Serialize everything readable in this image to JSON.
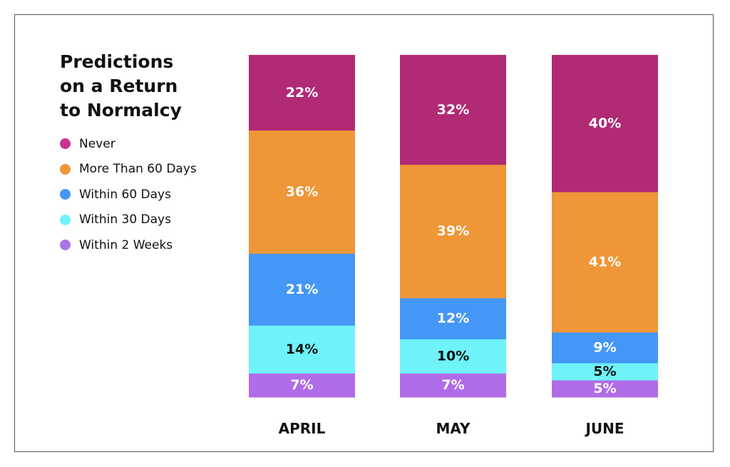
{
  "chart_data": {
    "type": "bar",
    "stacked": true,
    "title_lines": [
      "Predictions",
      "on a Return",
      "to Normalcy"
    ],
    "categories": [
      "APRIL",
      "MAY",
      "JUNE"
    ],
    "series": [
      {
        "name": "Within 2 Weeks",
        "color": "#b06ce8",
        "label_color": "#ffffff",
        "values": [
          7,
          7,
          5
        ],
        "labels": [
          "7%",
          "7%",
          "5%"
        ]
      },
      {
        "name": "Within 30 Days",
        "color": "#6ff3f8",
        "label_color": "#111111",
        "values": [
          14,
          10,
          5
        ],
        "labels": [
          "14%",
          "10%",
          "5%"
        ]
      },
      {
        "name": "Within 60 Days",
        "color": "#4597f5",
        "label_color": "#ffffff",
        "values": [
          21,
          12,
          9
        ],
        "labels": [
          "21%",
          "12%",
          "9%"
        ]
      },
      {
        "name": "More Than 60 Days",
        "color": "#ef9638",
        "label_color": "#ffffff",
        "values": [
          36,
          39,
          41
        ],
        "labels": [
          "36%",
          "39%",
          "41%"
        ]
      },
      {
        "name": "Never",
        "color": "#b02a75",
        "label_color": "#ffffff",
        "values": [
          22,
          32,
          40
        ],
        "labels": [
          "22%",
          "32%",
          "40%"
        ]
      }
    ],
    "legend_order": [
      "Never",
      "More Than 60 Days",
      "Within 60 Days",
      "Within 30 Days",
      "Within 2 Weeks"
    ],
    "legend_colors": [
      "#c93390",
      "#ef9638",
      "#4597f5",
      "#6ff3f8",
      "#a876e6"
    ],
    "legend_position": "left",
    "grid": false,
    "ylim": [
      0,
      100
    ]
  }
}
